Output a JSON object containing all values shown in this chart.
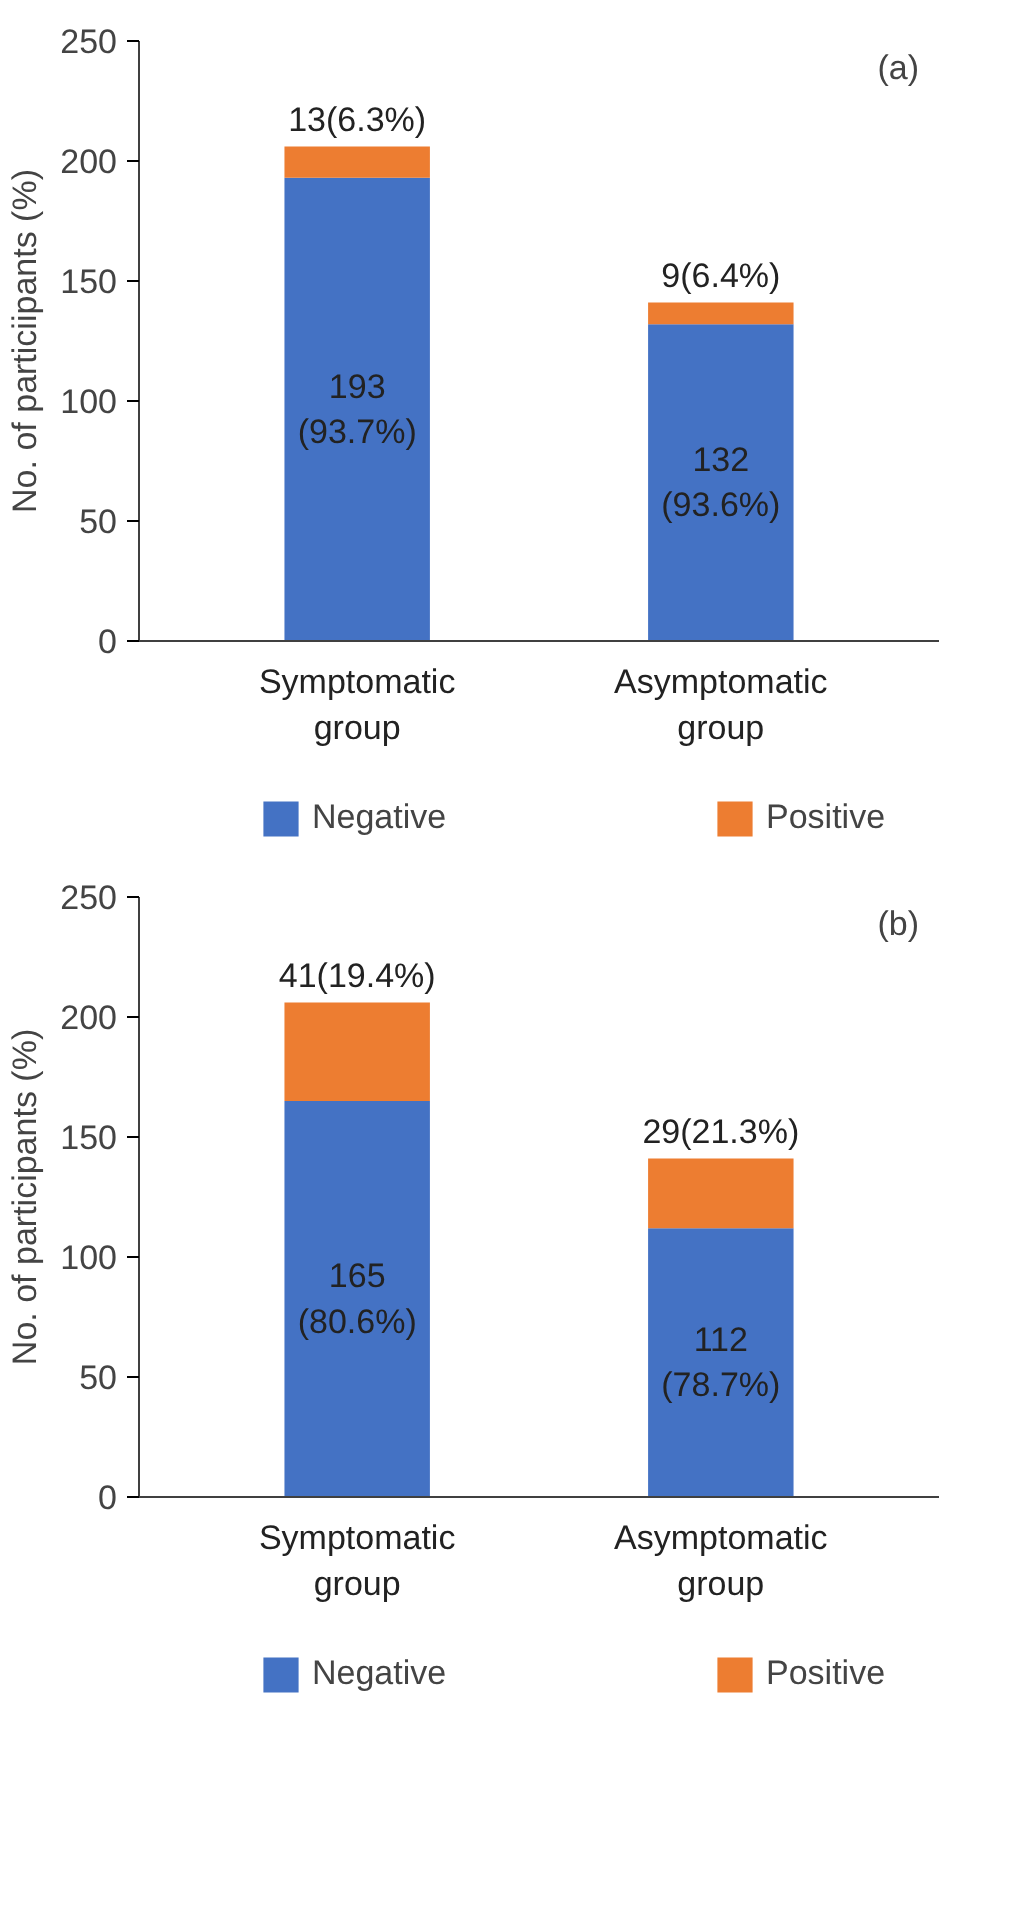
{
  "chart_data": [
    {
      "type": "bar",
      "stacked": true,
      "ylabel": "No. of particiipants (%)",
      "annotations": [
        "(a)"
      ],
      "categories": [
        "Symptomatic group",
        "Asymptomatic group"
      ],
      "series": [
        {
          "name": "Negative",
          "color": "#4472c4",
          "values": [
            193,
            132
          ],
          "value_labels": [
            "193 (93.7%)",
            "132 (93.6%)"
          ]
        },
        {
          "name": "Positive",
          "color": "#ed7d31",
          "values": [
            13,
            9
          ],
          "value_labels": [
            "13(6.3%)",
            "9(6.4%)"
          ]
        }
      ],
      "ylim": [
        0,
        250
      ],
      "yticks": [
        0,
        50,
        100,
        150,
        200,
        250
      ],
      "grid": false,
      "legend": "bottom"
    },
    {
      "type": "bar",
      "stacked": true,
      "ylabel": "No. of participants (%)",
      "annotations": [
        "(b)"
      ],
      "categories": [
        "Symptomatic group",
        "Asymptomatic group"
      ],
      "series": [
        {
          "name": "Negative",
          "color": "#4472c4",
          "values": [
            165,
            112
          ],
          "value_labels": [
            "165 (80.6%)",
            "112 (78.7%)"
          ]
        },
        {
          "name": "Positive",
          "color": "#ed7d31",
          "values": [
            41,
            29
          ],
          "value_labels": [
            "41(19.4%)",
            "29(21.3%)"
          ]
        }
      ],
      "ylim": [
        0,
        250
      ],
      "yticks": [
        0,
        50,
        100,
        150,
        200,
        250
      ],
      "grid": false,
      "legend": "bottom"
    }
  ]
}
